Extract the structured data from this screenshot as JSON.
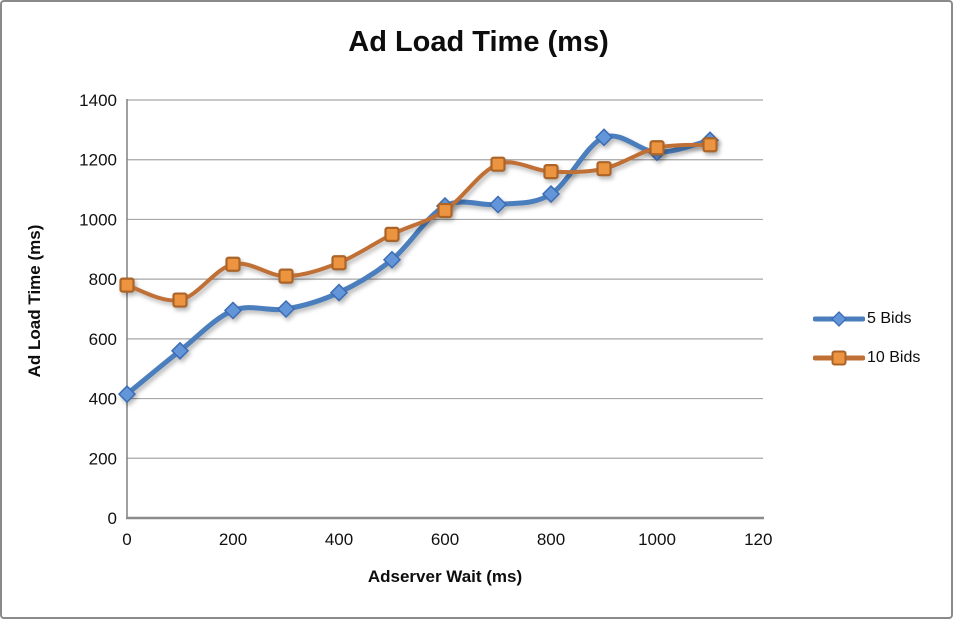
{
  "title": "Ad Load Time (ms)",
  "chart_data": {
    "type": "line",
    "x": [
      0,
      100,
      200,
      300,
      400,
      500,
      600,
      700,
      800,
      900,
      1000,
      1100
    ],
    "series": [
      {
        "name": "5 Bids",
        "marker": "diamond",
        "line_color": "#4B7EBD",
        "marker_fill": "#6396D8",
        "marker_stroke": "#3C6CB5",
        "values": [
          415,
          560,
          695,
          700,
          755,
          865,
          1045,
          1050,
          1085,
          1275,
          1225,
          1265
        ]
      },
      {
        "name": "10 Bids",
        "marker": "square",
        "line_color": "#C06F35",
        "marker_fill": "#ED9441",
        "marker_stroke": "#AC6529",
        "values": [
          780,
          730,
          850,
          810,
          855,
          950,
          1030,
          1185,
          1160,
          1170,
          1240,
          1250
        ]
      }
    ],
    "xlabel": "Adserver Wait (ms)",
    "ylabel": "Ad Load Time (ms)",
    "xlim": [
      0,
      1200
    ],
    "ylim": [
      0,
      1400
    ],
    "x_tick_step": 200,
    "y_tick_step": 200,
    "grid": "horizontal",
    "legend_position": "right",
    "smoothed_lines": true
  }
}
